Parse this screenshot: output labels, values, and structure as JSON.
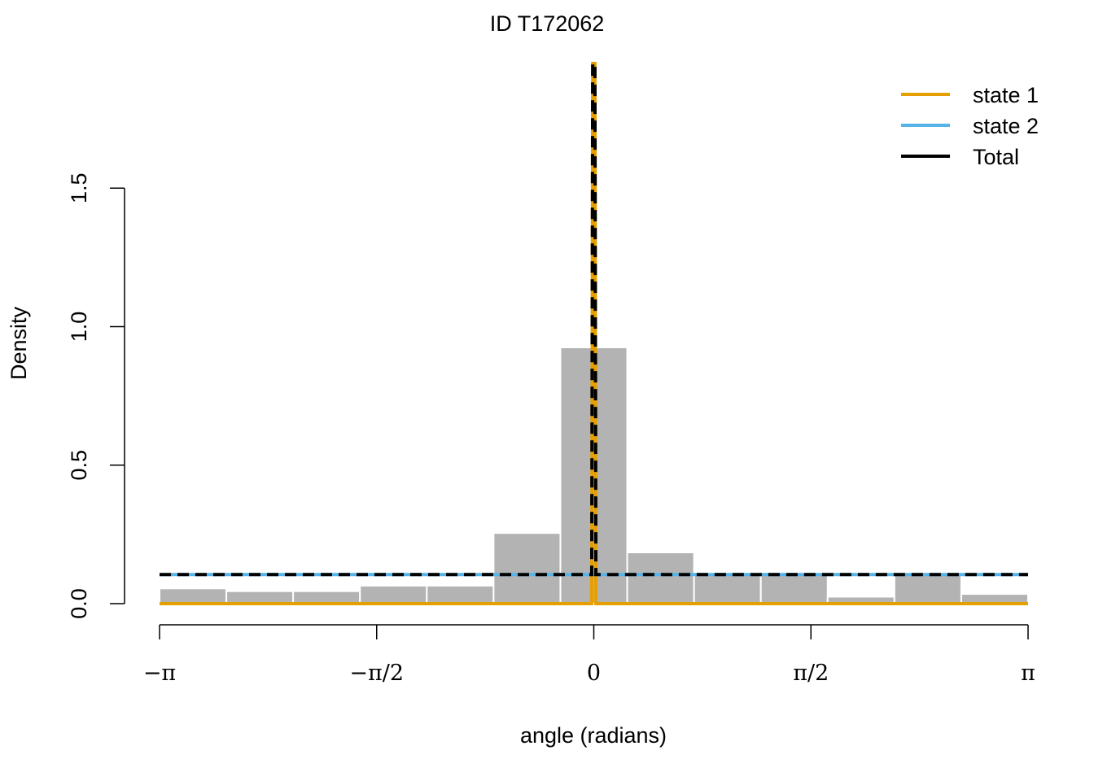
{
  "chart_data": {
    "type": "bar",
    "title": "ID T172062",
    "xlabel": "angle (radians)",
    "ylabel": "Density",
    "xlim": [
      -3.14159,
      3.14159
    ],
    "ylim": [
      0,
      1.95
    ],
    "x_ticks": [
      {
        "value": -3.14159,
        "label": "−π"
      },
      {
        "value": -1.5708,
        "label": "−π/2"
      },
      {
        "value": 0,
        "label": "0"
      },
      {
        "value": 1.5708,
        "label": "π/2"
      },
      {
        "value": 3.14159,
        "label": "π"
      }
    ],
    "y_ticks": [
      {
        "value": 0.0,
        "label": "0.0"
      },
      {
        "value": 0.5,
        "label": "0.5"
      },
      {
        "value": 1.0,
        "label": "1.0"
      },
      {
        "value": 1.5,
        "label": "1.5"
      }
    ],
    "histogram": {
      "bin_edges": [
        -3.14159,
        -2.65825,
        -2.17491,
        -1.69163,
        -1.20829,
        -0.72501,
        -0.24167,
        0.24167,
        0.72501,
        1.20829,
        1.69163,
        2.17491,
        2.65825,
        3.14159
      ],
      "density": [
        0.055,
        0.045,
        0.045,
        0.065,
        0.065,
        0.255,
        0.925,
        0.185,
        0.105,
        0.105,
        0.025,
        0.105,
        0.035
      ],
      "color": "#b3b3b3"
    },
    "series": [
      {
        "name": "state 1",
        "color": "#e69f00",
        "style": "solid",
        "x": [
          -3.14159,
          -0.015,
          -0.008,
          0,
          0.008,
          0.015,
          3.14159
        ],
        "y": [
          0,
          0,
          1.95,
          1.95,
          1.95,
          0,
          0
        ]
      },
      {
        "name": "state 2",
        "color": "#56b4e9",
        "style": "solid",
        "x": [
          -3.14159,
          3.14159
        ],
        "y": [
          0.105,
          0.105
        ]
      },
      {
        "name": "Total",
        "color": "#000000",
        "style": "dashed",
        "x": [
          -3.14159,
          -0.015,
          -0.008,
          0,
          0.008,
          0.015,
          3.14159
        ],
        "y": [
          0.105,
          0.105,
          1.95,
          1.95,
          1.95,
          0.105,
          0.105
        ]
      }
    ],
    "legend": {
      "position": "top-right",
      "entries": [
        "state 1",
        "state 2",
        "Total"
      ]
    }
  }
}
